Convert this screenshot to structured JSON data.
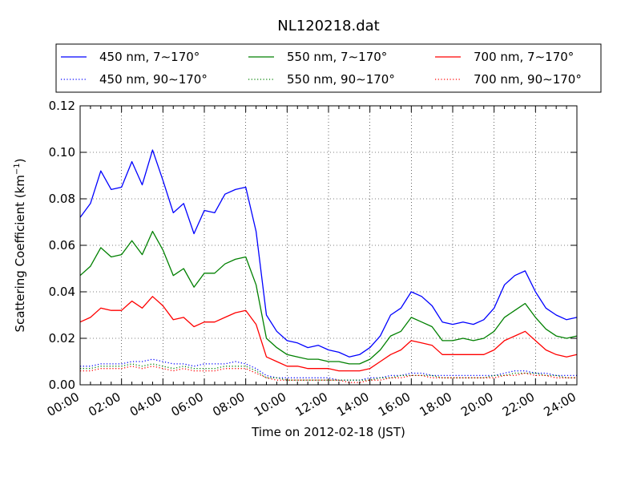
{
  "chart_data": {
    "type": "line",
    "title": "NL120218.dat",
    "xlabel": "Time on 2012-02-18 (JST)",
    "ylabel_main": "Scattering Coefficient (km",
    "ylabel_sup": "−1",
    "ylabel_end": ")",
    "xlim": [
      0,
      24
    ],
    "ylim": [
      0,
      0.12
    ],
    "x_ticks": [
      0,
      2,
      4,
      6,
      8,
      10,
      12,
      14,
      16,
      18,
      20,
      22,
      24
    ],
    "x_tick_labels": [
      "00:00",
      "02:00",
      "04:00",
      "06:00",
      "08:00",
      "10:00",
      "12:00",
      "14:00",
      "16:00",
      "18:00",
      "20:00",
      "22:00",
      "24:00"
    ],
    "y_ticks": [
      0,
      0.02,
      0.04,
      0.06,
      0.08,
      0.1,
      0.12
    ],
    "y_tick_labels": [
      "0.00",
      "0.02",
      "0.04",
      "0.06",
      "0.08",
      "0.10",
      "0.12"
    ],
    "grid": true,
    "legend_position": "top",
    "x": [
      0,
      0.5,
      1,
      1.5,
      2,
      2.5,
      3,
      3.5,
      4,
      4.5,
      5,
      5.5,
      6,
      6.5,
      7,
      7.5,
      8,
      8.5,
      9,
      9.5,
      10,
      10.5,
      11,
      11.5,
      12,
      12.5,
      13,
      13.5,
      14,
      14.5,
      15,
      15.5,
      16,
      16.5,
      17,
      17.5,
      18,
      18.5,
      19,
      19.5,
      20,
      20.5,
      21,
      21.5,
      22,
      22.5,
      23,
      23.5,
      24
    ],
    "series": [
      {
        "name": "450 nm, 7∼170°",
        "color": "#0000ff",
        "style": "solid",
        "values": [
          0.072,
          0.078,
          0.092,
          0.084,
          0.085,
          0.096,
          0.086,
          0.101,
          0.088,
          0.074,
          0.078,
          0.065,
          0.075,
          0.074,
          0.082,
          0.084,
          0.085,
          0.066,
          0.03,
          0.023,
          0.019,
          0.018,
          0.016,
          0.017,
          0.015,
          0.014,
          0.012,
          0.013,
          0.016,
          0.021,
          0.03,
          0.033,
          0.04,
          0.038,
          0.034,
          0.027,
          0.026,
          0.027,
          0.026,
          0.028,
          0.033,
          0.043,
          0.047,
          0.049,
          0.04,
          0.033,
          0.03,
          0.028,
          0.029
        ]
      },
      {
        "name": "450 nm, 90∼170°",
        "color": "#0000ff",
        "style": "dotted",
        "values": [
          0.008,
          0.008,
          0.009,
          0.009,
          0.009,
          0.01,
          0.01,
          0.011,
          0.01,
          0.009,
          0.009,
          0.008,
          0.009,
          0.009,
          0.009,
          0.01,
          0.009,
          0.007,
          0.004,
          0.003,
          0.003,
          0.003,
          0.003,
          0.003,
          0.003,
          0.002,
          0.002,
          0.002,
          0.003,
          0.003,
          0.004,
          0.004,
          0.005,
          0.005,
          0.004,
          0.004,
          0.004,
          0.004,
          0.004,
          0.004,
          0.004,
          0.005,
          0.006,
          0.006,
          0.005,
          0.005,
          0.004,
          0.004,
          0.004
        ]
      },
      {
        "name": "550 nm, 7∼170°",
        "color": "#008000",
        "style": "solid",
        "values": [
          0.047,
          0.051,
          0.059,
          0.055,
          0.056,
          0.062,
          0.056,
          0.066,
          0.058,
          0.047,
          0.05,
          0.042,
          0.048,
          0.048,
          0.052,
          0.054,
          0.055,
          0.043,
          0.02,
          0.016,
          0.013,
          0.012,
          0.011,
          0.011,
          0.01,
          0.01,
          0.009,
          0.009,
          0.011,
          0.015,
          0.021,
          0.023,
          0.029,
          0.027,
          0.025,
          0.019,
          0.019,
          0.02,
          0.019,
          0.02,
          0.023,
          0.029,
          0.032,
          0.035,
          0.029,
          0.024,
          0.021,
          0.02,
          0.021
        ]
      },
      {
        "name": "550 nm, 90∼170°",
        "color": "#008000",
        "style": "dotted",
        "values": [
          0.007,
          0.007,
          0.008,
          0.008,
          0.008,
          0.009,
          0.008,
          0.009,
          0.008,
          0.007,
          0.008,
          0.007,
          0.007,
          0.007,
          0.008,
          0.008,
          0.008,
          0.006,
          0.003,
          0.003,
          0.002,
          0.002,
          0.002,
          0.002,
          0.002,
          0.002,
          0.002,
          0.002,
          0.002,
          0.003,
          0.003,
          0.004,
          0.004,
          0.004,
          0.004,
          0.003,
          0.003,
          0.003,
          0.003,
          0.003,
          0.004,
          0.004,
          0.005,
          0.005,
          0.005,
          0.004,
          0.004,
          0.003,
          0.003
        ]
      },
      {
        "name": "700 nm, 7∼170°",
        "color": "#ff0000",
        "style": "solid",
        "values": [
          0.027,
          0.029,
          0.033,
          0.032,
          0.032,
          0.036,
          0.033,
          0.038,
          0.034,
          0.028,
          0.029,
          0.025,
          0.027,
          0.027,
          0.029,
          0.031,
          0.032,
          0.026,
          0.012,
          0.01,
          0.008,
          0.008,
          0.007,
          0.007,
          0.007,
          0.006,
          0.006,
          0.006,
          0.007,
          0.01,
          0.013,
          0.015,
          0.019,
          0.018,
          0.017,
          0.013,
          0.013,
          0.013,
          0.013,
          0.013,
          0.015,
          0.019,
          0.021,
          0.023,
          0.019,
          0.015,
          0.013,
          0.012,
          0.013
        ]
      },
      {
        "name": "700 nm, 90∼170°",
        "color": "#ff0000",
        "style": "dotted",
        "values": [
          0.006,
          0.006,
          0.007,
          0.007,
          0.007,
          0.008,
          0.007,
          0.008,
          0.007,
          0.006,
          0.007,
          0.006,
          0.006,
          0.006,
          0.007,
          0.007,
          0.007,
          0.005,
          0.003,
          0.002,
          0.002,
          0.002,
          0.002,
          0.002,
          0.002,
          0.002,
          0.001,
          0.001,
          0.002,
          0.002,
          0.003,
          0.003,
          0.004,
          0.004,
          0.003,
          0.003,
          0.003,
          0.003,
          0.003,
          0.003,
          0.003,
          0.004,
          0.004,
          0.005,
          0.004,
          0.004,
          0.003,
          0.003,
          0.003
        ]
      }
    ]
  }
}
